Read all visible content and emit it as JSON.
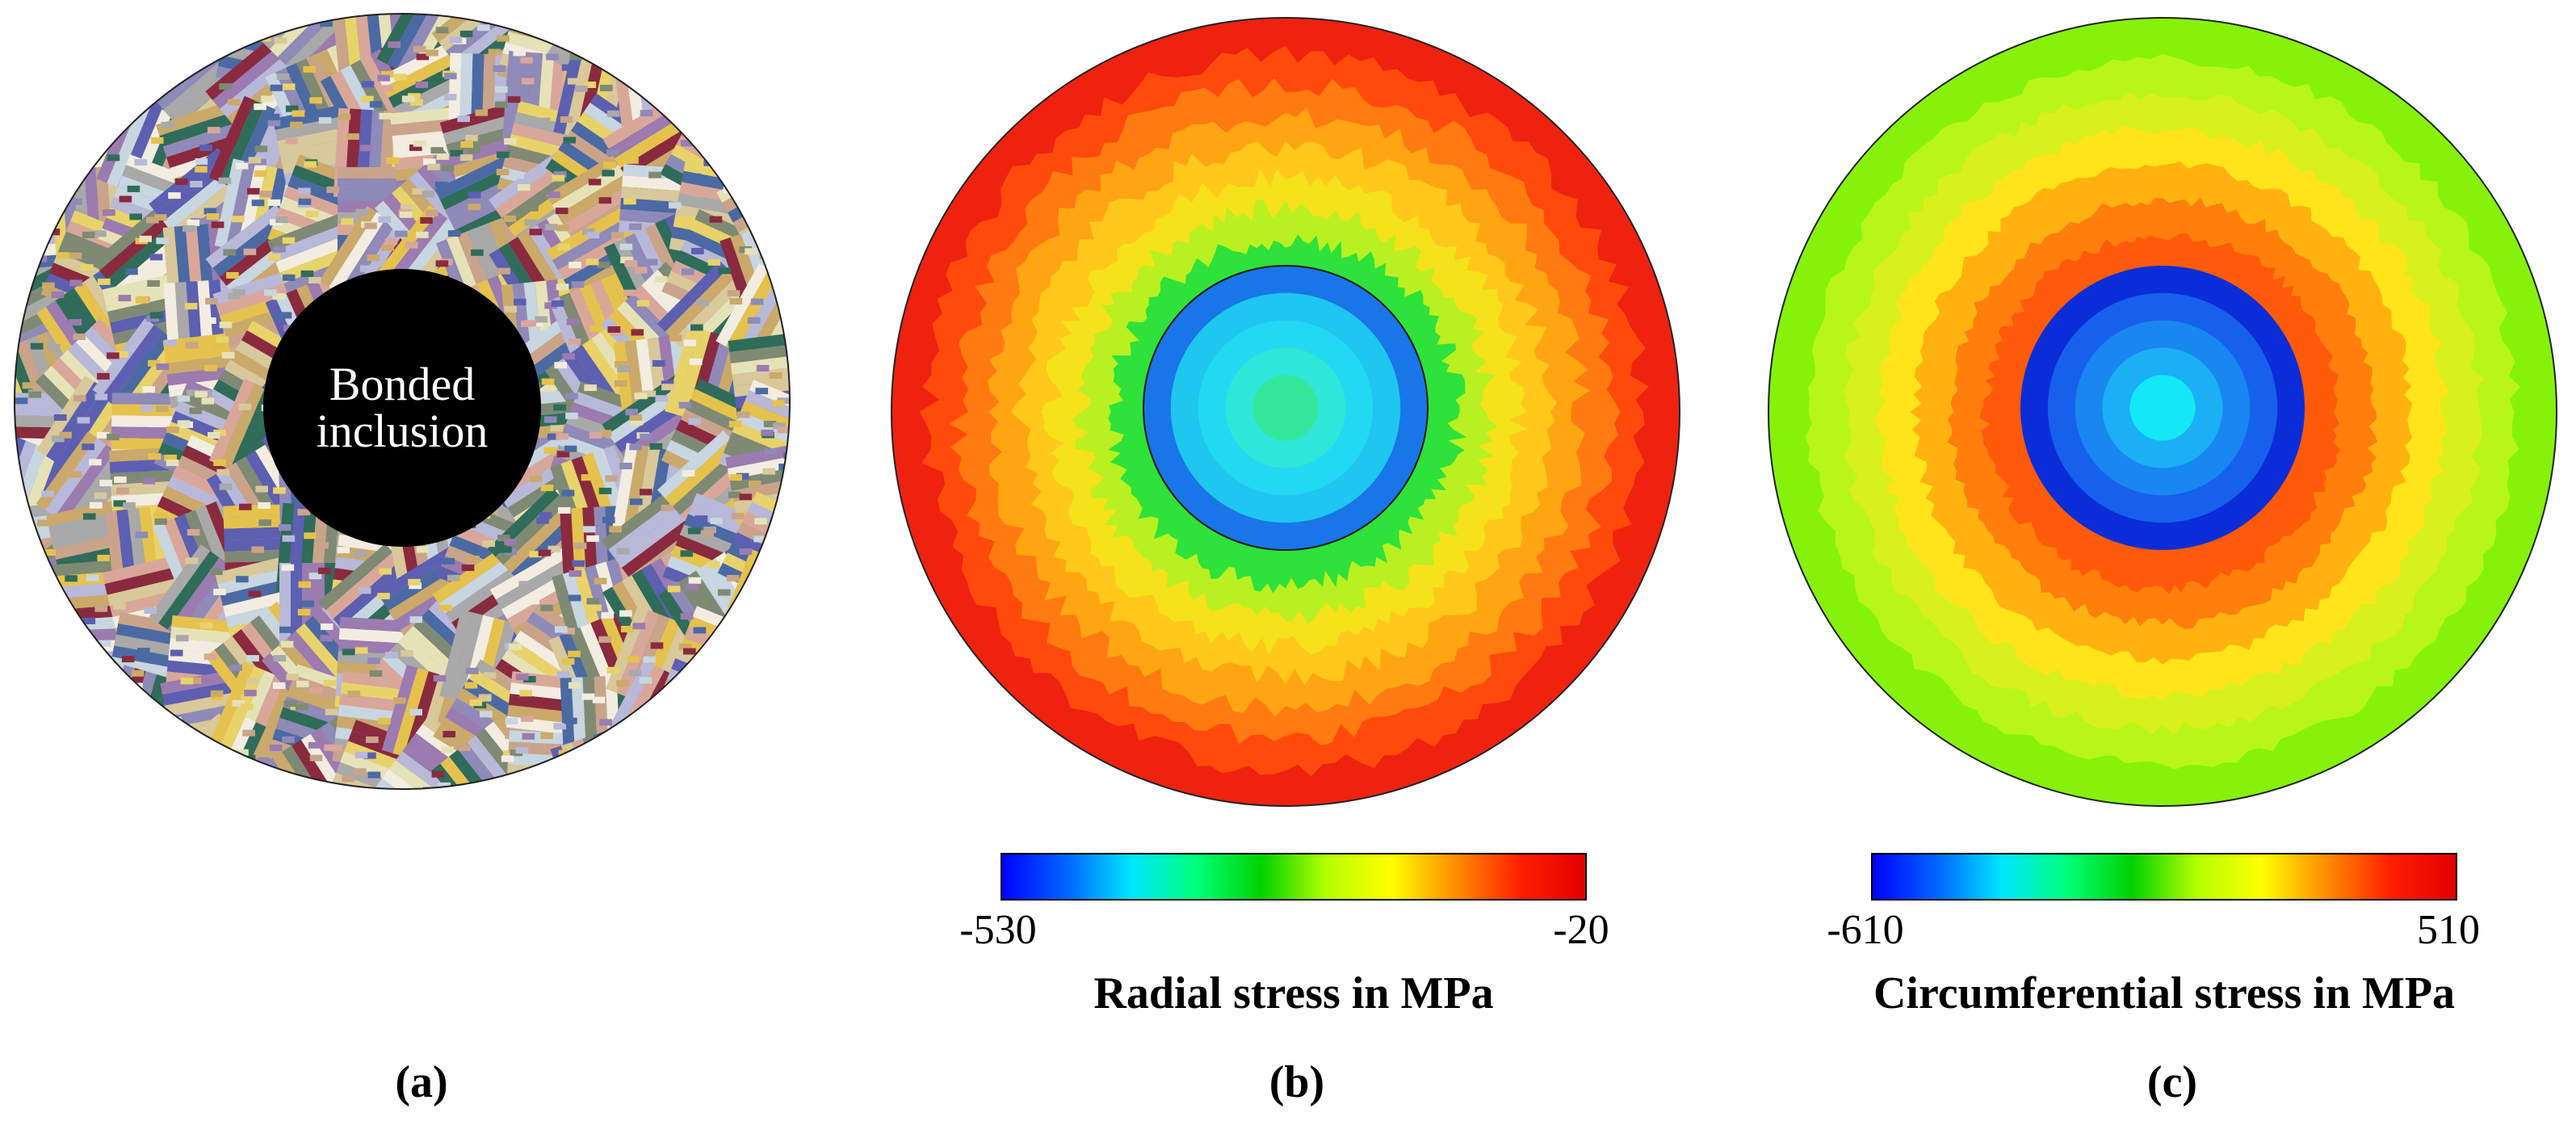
{
  "panels": [
    {
      "id": "a",
      "label": "(a)",
      "center_text_lines": [
        "Bonded",
        "inclusion"
      ],
      "grain_palette": [
        "#c9a48a",
        "#8f8ab8",
        "#e8d36a",
        "#8a2a3f",
        "#2f6c5a",
        "#b8b8d8",
        "#d8c89a",
        "#a9a9a9",
        "#5d5fb1",
        "#e6e2b8",
        "#9b7bb0",
        "#c7d6e0",
        "#7e8a74",
        "#d9a79a",
        "#f2ede0",
        "#4b6aa3",
        "#caa96b",
        "#e5c24d"
      ]
    },
    {
      "id": "b",
      "label": "(b)",
      "colorbar": {
        "min_label": "-530",
        "max_label": "-20",
        "title": "Radial stress in MPa",
        "min": -530,
        "max": -20
      },
      "field": {
        "type": "radial_contour",
        "outer_to_inner_colors": [
          "#ef2210",
          "#ff4a0c",
          "#ff7a10",
          "#ffa512",
          "#ffc81a",
          "#f5e21a",
          "#b9f021",
          "#2fe13b"
        ],
        "inclusion_colors": [
          "#1fc6f0",
          "#22d9f2",
          "#2fe6d8",
          "#35e79a"
        ],
        "inclusion_edge_color": "#1976e8"
      }
    },
    {
      "id": "c",
      "label": "(c)",
      "colorbar": {
        "min_label": "-610",
        "max_label": "510",
        "title": "Circumferential stress in MPa",
        "min": -610,
        "max": 510
      },
      "field": {
        "type": "radial_contour",
        "outer_to_inner_colors": [
          "#86f20b",
          "#b8f51b",
          "#d8f01b",
          "#ffe41b",
          "#ffb20f",
          "#ff7e0c",
          "#ff5a0a"
        ],
        "inclusion_colors": [
          "#1760ec",
          "#1a86f0",
          "#1bb0f3",
          "#14e8f8"
        ],
        "inclusion_edge_color": "#0a2dd8"
      }
    }
  ],
  "colormap_stops": [
    "#0000ff",
    "#0065ff",
    "#00e6ff",
    "#00ff7a",
    "#00d200",
    "#b4ff00",
    "#ffff00",
    "#ff8c00",
    "#ff1e00",
    "#e00000"
  ]
}
